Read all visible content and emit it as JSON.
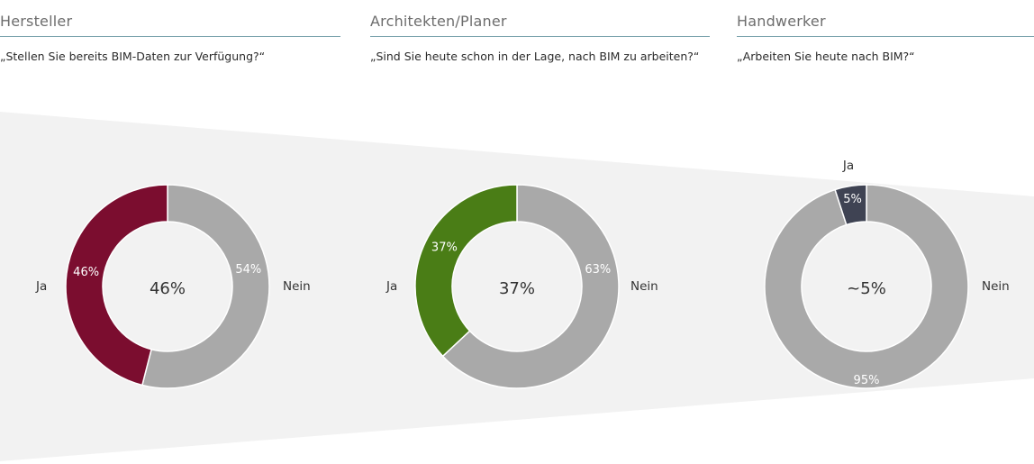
{
  "colors": {
    "funnel": "#f2f2f2",
    "rest": "#a9a9a9",
    "title_rule": "#7aa3ad"
  },
  "columns": [
    {
      "title": "Hersteller",
      "question": "„Stellen Sie bereits BIM-Daten zur Verfügung?“"
    },
    {
      "title": "Architekten/Planer",
      "question": "„Sind Sie heute schon in der Lage, nach BIM zu arbeiten?“"
    },
    {
      "title": "Handwerker",
      "question": "„Arbeiten Sie heute nach BIM?“"
    }
  ],
  "chart_data": [
    {
      "type": "pie",
      "style": "donut",
      "center_label": "46%",
      "slices": [
        {
          "name": "Ja",
          "value": 46,
          "label": "46%",
          "color": "#7b0d2f"
        },
        {
          "name": "Nein",
          "value": 54,
          "label": "54%",
          "color": "#a9a9a9"
        }
      ]
    },
    {
      "type": "pie",
      "style": "donut",
      "center_label": "37%",
      "slices": [
        {
          "name": "Ja",
          "value": 37,
          "label": "37%",
          "color": "#4a7d16"
        },
        {
          "name": "Nein",
          "value": 63,
          "label": "63%",
          "color": "#a9a9a9"
        }
      ]
    },
    {
      "type": "pie",
      "style": "donut",
      "center_label": "~5%",
      "slices": [
        {
          "name": "Ja",
          "value": 5,
          "label": "5%",
          "color": "#3f4353"
        },
        {
          "name": "Nein",
          "value": 95,
          "label": "95%",
          "color": "#a9a9a9"
        }
      ]
    }
  ]
}
